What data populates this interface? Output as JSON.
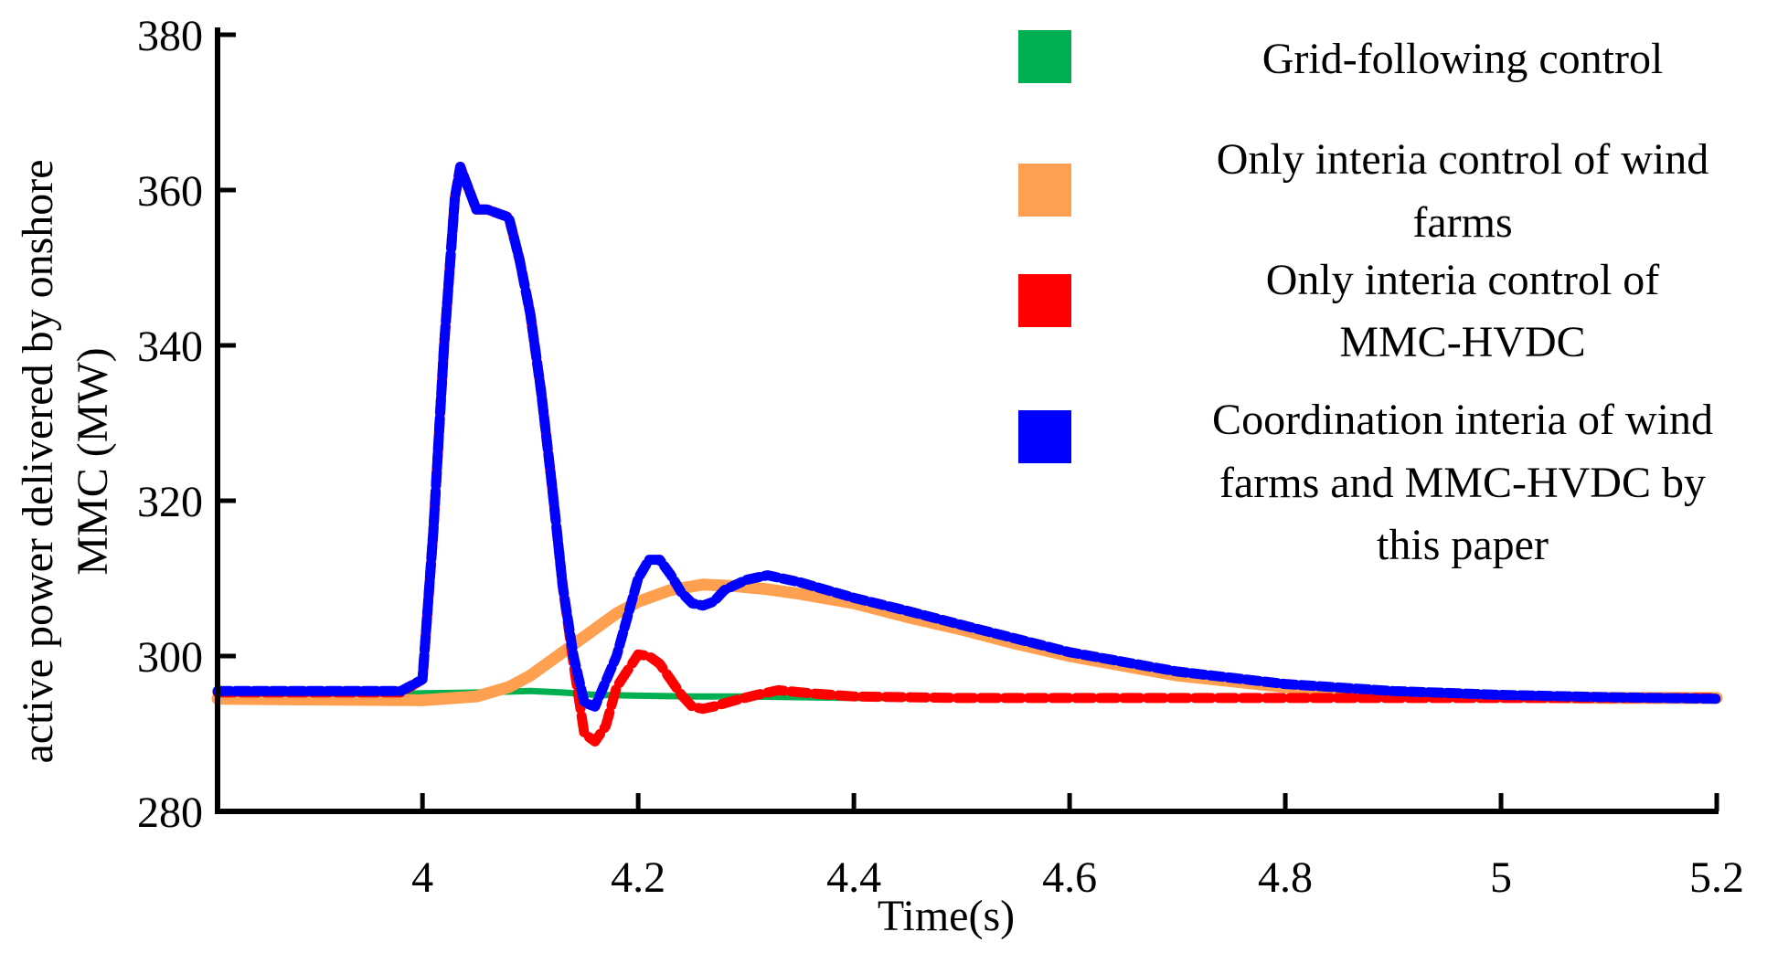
{
  "chart_data": {
    "type": "line",
    "title": "",
    "xlabel": "Time(s)",
    "ylabel_lines": [
      "active power delivered by onshore",
      "MMC (MW)"
    ],
    "xlim": [
      3.81,
      5.2
    ],
    "ylim": [
      280,
      380
    ],
    "xticks": [
      4,
      4.2,
      4.4,
      4.6,
      4.8,
      5,
      5.2
    ],
    "xtick_labels": [
      "4",
      "4.2",
      "4.4",
      "4.6",
      "4.8",
      "5",
      "5.2"
    ],
    "yticks": [
      280,
      300,
      320,
      340,
      360,
      380
    ],
    "ytick_labels": [
      "280",
      "300",
      "320",
      "340",
      "360",
      "380"
    ],
    "grid": false,
    "legend_position": "top-right",
    "series": [
      {
        "name": "Grid-following control",
        "legend_lines": [
          "Grid-following control"
        ],
        "color": "#00b050",
        "x": [
          3.81,
          3.9,
          3.95,
          4.0,
          4.05,
          4.1,
          4.13,
          4.16,
          4.2,
          4.25,
          4.3,
          4.4,
          4.6,
          4.8,
          5.0,
          5.2
        ],
        "y": [
          294.8,
          294.8,
          295,
          295.2,
          295.3,
          295.5,
          295.3,
          295,
          294.9,
          294.8,
          294.8,
          294.6,
          294.6,
          294.6,
          294.6,
          294.6
        ]
      },
      {
        "name": "Only interia control of wind farms",
        "legend_lines": [
          "Only interia control of wind",
          "farms"
        ],
        "color": "#ffa050",
        "x": [
          3.81,
          3.9,
          4.0,
          4.05,
          4.08,
          4.1,
          4.12,
          4.15,
          4.18,
          4.2,
          4.23,
          4.26,
          4.29,
          4.32,
          4.35,
          4.4,
          4.45,
          4.5,
          4.55,
          4.6,
          4.7,
          4.8,
          4.9,
          5.0,
          5.1,
          5.2
        ],
        "y": [
          294.5,
          294.4,
          294.3,
          294.8,
          296,
          297.5,
          299.5,
          302.5,
          305.5,
          307,
          308.5,
          309.2,
          309,
          308.6,
          308,
          306.8,
          305,
          303.4,
          301.6,
          300,
          297.5,
          296,
          295.2,
          294.8,
          294.6,
          294.6
        ]
      },
      {
        "name": "Only interia control of MMC-HVDC",
        "legend_lines": [
          "Only interia  control of",
          "MMC-HVDC"
        ],
        "color": "#ff0000",
        "x": [
          3.81,
          3.9,
          3.98,
          4.0,
          4.01,
          4.02,
          4.03,
          4.035,
          4.05,
          4.06,
          4.08,
          4.09,
          4.1,
          4.11,
          4.12,
          4.13,
          4.14,
          4.15,
          4.16,
          4.17,
          4.18,
          4.2,
          4.21,
          4.22,
          4.23,
          4.24,
          4.25,
          4.26,
          4.27,
          4.29,
          4.31,
          4.33,
          4.36,
          4.4,
          4.5,
          4.6,
          4.8,
          5.0,
          5.2
        ],
        "y": [
          295.3,
          295.3,
          295.3,
          297,
          316,
          340,
          359,
          363,
          357.5,
          357.5,
          356.5,
          351,
          344,
          334,
          322,
          309,
          299,
          290,
          289,
          291,
          296,
          300.2,
          300,
          299,
          297,
          295,
          293.5,
          293.2,
          293.5,
          294.3,
          295,
          295.6,
          295.2,
          294.8,
          294.6,
          294.6,
          294.6,
          294.6,
          294.6
        ]
      },
      {
        "name": "Coordination interia of wind farms and MMC-HVDC by this paper",
        "legend_lines": [
          "Coordination interia of wind",
          "farms and MMC-HVDC by",
          "this paper"
        ],
        "color": "#0000ff",
        "x": [
          3.81,
          3.9,
          3.98,
          4.0,
          4.01,
          4.02,
          4.03,
          4.035,
          4.05,
          4.06,
          4.08,
          4.09,
          4.1,
          4.11,
          4.12,
          4.13,
          4.14,
          4.15,
          4.16,
          4.18,
          4.2,
          4.21,
          4.22,
          4.23,
          4.24,
          4.25,
          4.26,
          4.27,
          4.28,
          4.3,
          4.32,
          4.35,
          4.4,
          4.45,
          4.5,
          4.6,
          4.7,
          4.8,
          4.9,
          5.0,
          5.1,
          5.2
        ],
        "y": [
          295.5,
          295.5,
          295.5,
          297,
          316,
          340,
          359,
          363,
          357.5,
          357.5,
          356.5,
          351,
          344,
          334,
          322,
          309,
          300,
          294,
          293.5,
          300,
          310,
          312.4,
          312.4,
          310.5,
          308.2,
          306.8,
          306.5,
          307,
          308.5,
          309.8,
          310.4,
          309.5,
          307.5,
          305.8,
          304,
          300.5,
          298,
          296.4,
          295.5,
          295,
          294.7,
          294.5
        ]
      }
    ]
  }
}
